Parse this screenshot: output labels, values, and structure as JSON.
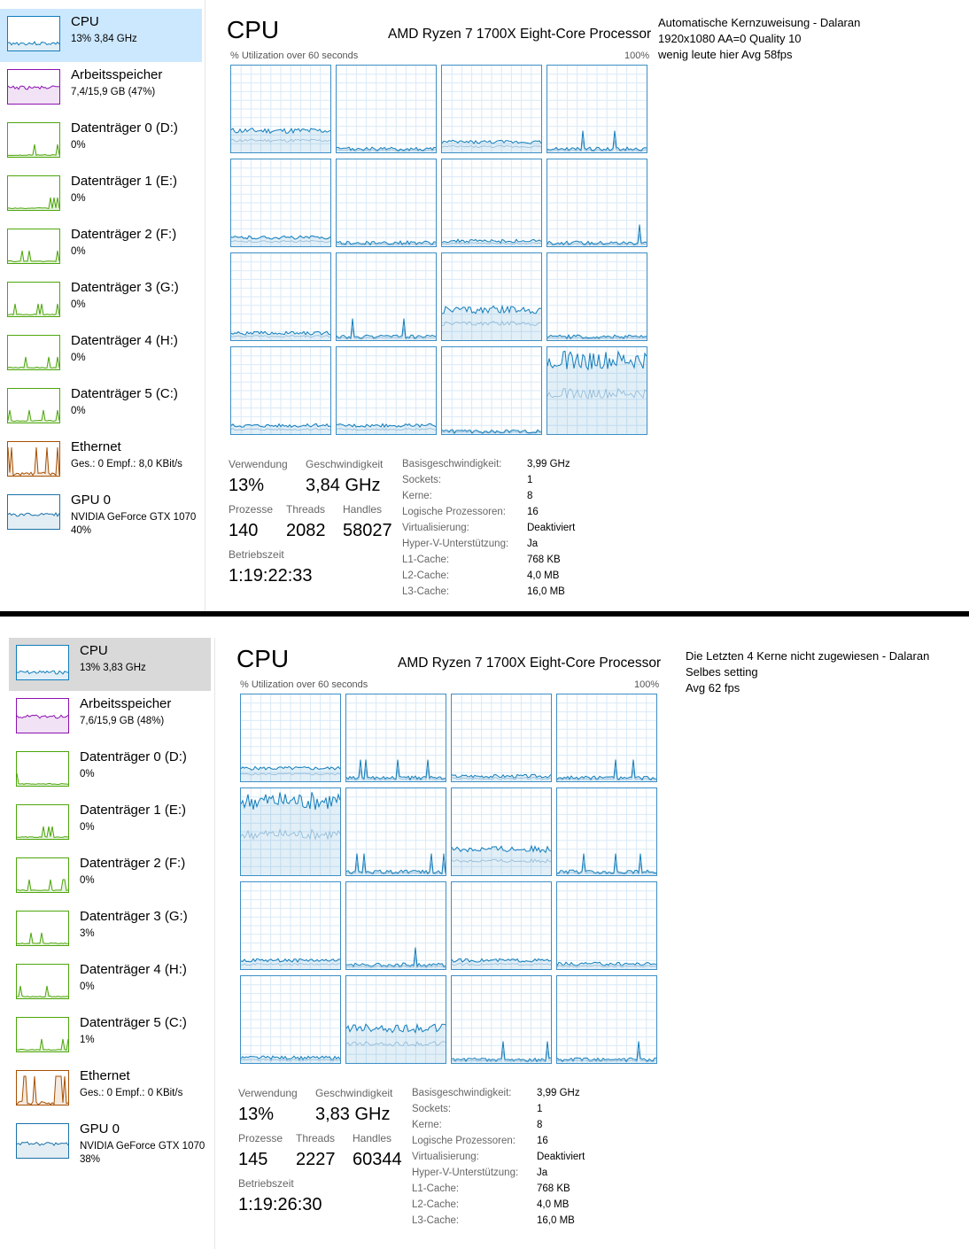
{
  "colors": {
    "cpu": "#117dbb",
    "memory": "#8b12ae",
    "disk": "#4da60c",
    "ethernet": "#a74f01",
    "gpu": "#1c71a8",
    "selected_blue": "#cce8ff",
    "selected_grey": "#d9d9d9"
  },
  "panel_a": {
    "sidebar": [
      {
        "title": "CPU",
        "sub": "13% 3,84 GHz",
        "icon": "cpu-graph-icon"
      },
      {
        "title": "Arbeitsspeicher",
        "sub": "7,4/15,9 GB (47%)",
        "icon": "memory-graph-icon"
      },
      {
        "title": "Datenträger 0 (D:)",
        "sub": "0%",
        "icon": "disk-graph-icon"
      },
      {
        "title": "Datenträger 1 (E:)",
        "sub": "0%",
        "icon": "disk-graph-icon"
      },
      {
        "title": "Datenträger 2 (F:)",
        "sub": "0%",
        "icon": "disk-graph-icon"
      },
      {
        "title": "Datenträger 3 (G:)",
        "sub": "0%",
        "icon": "disk-graph-icon"
      },
      {
        "title": "Datenträger 4 (H:)",
        "sub": "0%",
        "icon": "disk-graph-icon"
      },
      {
        "title": "Datenträger 5 (C:)",
        "sub": "0%",
        "icon": "disk-graph-icon"
      },
      {
        "title": "Ethernet",
        "sub": "Ges.: 0 Empf.: 8,0 KBit/s",
        "icon": "network-graph-icon"
      },
      {
        "title": "GPU 0",
        "sub": "NVIDIA GeForce GTX 1070",
        "sub2": "40%",
        "icon": "gpu-graph-icon"
      }
    ],
    "cpu_title": "CPU",
    "processor": "AMD Ryzen 7 1700X Eight-Core Processor",
    "util_label": "% Utilization over 60 seconds",
    "max_label": "100%",
    "core_levels": [
      0.25,
      0.04,
      0.12,
      0.04,
      0.1,
      0.04,
      0.06,
      0.04,
      0.08,
      0.04,
      0.35,
      0.04,
      0.1,
      0.1,
      0.03,
      0.85
    ],
    "stats": {
      "verwendung_label": "Verwendung",
      "verwendung": "13%",
      "geschwindigkeit_label": "Geschwindigkeit",
      "geschwindigkeit": "3,84 GHz",
      "prozesse_label": "Prozesse",
      "prozesse": "140",
      "threads_label": "Threads",
      "threads": "2082",
      "handles_label": "Handles",
      "handles": "58027",
      "betriebszeit_label": "Betriebszeit",
      "betriebszeit": "1:19:22:33"
    },
    "info": [
      {
        "label": "Basisgeschwindigkeit:",
        "value": "3,99 GHz"
      },
      {
        "label": "Sockets:",
        "value": "1"
      },
      {
        "label": "Kerne:",
        "value": "8"
      },
      {
        "label": "Logische Prozessoren:",
        "value": "16"
      },
      {
        "label": "Virtualisierung:",
        "value": "Deaktiviert"
      },
      {
        "label": "Hyper-V-Unterstützung:",
        "value": "Ja"
      },
      {
        "label": "L1-Cache:",
        "value": "768 KB"
      },
      {
        "label": "L2-Cache:",
        "value": "4,0 MB"
      },
      {
        "label": "L3-Cache:",
        "value": "16,0 MB"
      }
    ],
    "note": [
      "Automatische Kernzuweisung - Dalaran",
      "1920x1080 AA=0 Quality 10",
      "wenig leute hier Avg 58fps"
    ]
  },
  "panel_b": {
    "sidebar": [
      {
        "title": "CPU",
        "sub": "13% 3,83 GHz",
        "icon": "cpu-graph-icon"
      },
      {
        "title": "Arbeitsspeicher",
        "sub": "7,6/15,9 GB (48%)",
        "icon": "memory-graph-icon"
      },
      {
        "title": "Datenträger 0 (D:)",
        "sub": "0%",
        "icon": "disk-graph-icon"
      },
      {
        "title": "Datenträger 1 (E:)",
        "sub": "0%",
        "icon": "disk-graph-icon"
      },
      {
        "title": "Datenträger 2 (F:)",
        "sub": "0%",
        "icon": "disk-graph-icon"
      },
      {
        "title": "Datenträger 3 (G:)",
        "sub": "3%",
        "icon": "disk-graph-icon"
      },
      {
        "title": "Datenträger 4 (H:)",
        "sub": "0%",
        "icon": "disk-graph-icon"
      },
      {
        "title": "Datenträger 5 (C:)",
        "sub": "1%",
        "icon": "disk-graph-icon"
      },
      {
        "title": "Ethernet",
        "sub": "Ges.: 0 Empf.: 0 KBit/s",
        "icon": "network-graph-icon"
      },
      {
        "title": "GPU 0",
        "sub": "NVIDIA GeForce GTX 1070",
        "sub2": "38%",
        "icon": "gpu-graph-icon"
      }
    ],
    "cpu_title": "CPU",
    "processor": "AMD Ryzen 7 1700X Eight-Core Processor",
    "util_label": "% Utilization over 60 seconds",
    "max_label": "100%",
    "core_levels": [
      0.15,
      0.04,
      0.06,
      0.04,
      0.85,
      0.04,
      0.3,
      0.04,
      0.1,
      0.05,
      0.1,
      0.06,
      0.06,
      0.4,
      0.04,
      0.04
    ],
    "stats": {
      "verwendung_label": "Verwendung",
      "verwendung": "13%",
      "geschwindigkeit_label": "Geschwindigkeit",
      "geschwindigkeit": "3,83 GHz",
      "prozesse_label": "Prozesse",
      "prozesse": "145",
      "threads_label": "Threads",
      "threads": "2227",
      "handles_label": "Handles",
      "handles": "60344",
      "betriebszeit_label": "Betriebszeit",
      "betriebszeit": "1:19:26:30"
    },
    "info": [
      {
        "label": "Basisgeschwindigkeit:",
        "value": "3,99 GHz"
      },
      {
        "label": "Sockets:",
        "value": "1"
      },
      {
        "label": "Kerne:",
        "value": "8"
      },
      {
        "label": "Logische Prozessoren:",
        "value": "16"
      },
      {
        "label": "Virtualisierung:",
        "value": "Deaktiviert"
      },
      {
        "label": "Hyper-V-Unterstützung:",
        "value": "Ja"
      },
      {
        "label": "L1-Cache:",
        "value": "768 KB"
      },
      {
        "label": "L2-Cache:",
        "value": "4,0 MB"
      },
      {
        "label": "L3-Cache:",
        "value": "16,0 MB"
      }
    ],
    "note": [
      "Die Letzten 4 Kerne nicht zugewiesen - Dalaran",
      "Selbes setting",
      "Avg 62 fps"
    ]
  }
}
